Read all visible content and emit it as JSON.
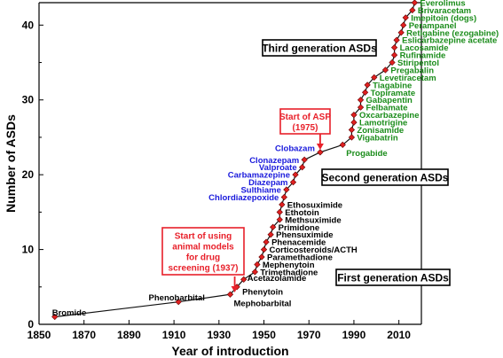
{
  "chart_data": {
    "type": "line",
    "title": "",
    "xlabel": "Year of introduction",
    "ylabel": "Number of ASDs",
    "xlim": [
      1850,
      2020
    ],
    "ylim": [
      0,
      43
    ],
    "xticks": [
      1850,
      1870,
      1890,
      1910,
      1930,
      1950,
      1970,
      1990,
      2010
    ],
    "yticks": [
      0,
      10,
      20,
      30,
      40
    ],
    "grid": false,
    "series": [
      {
        "name": "",
        "color": "#111111",
        "marker_color": "#e02020",
        "points": [
          {
            "x": 1857,
            "y": 1,
            "label": "Bromide",
            "gen": 1
          },
          {
            "x": 1912,
            "y": 3,
            "label": "Phenobarbital",
            "gen": 1
          },
          {
            "x": 1935,
            "y": 4,
            "label": "Mephobarbital",
            "gen": 1
          },
          {
            "x": 1938,
            "y": 5,
            "label": "Phenytoin",
            "gen": 1
          },
          {
            "x": 1941,
            "y": 6,
            "label": "Acetazolamide",
            "gen": 1
          },
          {
            "x": 1946,
            "y": 7,
            "label": "Trimethadione",
            "gen": 1
          },
          {
            "x": 1947,
            "y": 8,
            "label": "Mephenytoin",
            "gen": 1
          },
          {
            "x": 1949,
            "y": 9,
            "label": "Paramethadione",
            "gen": 1
          },
          {
            "x": 1950,
            "y": 10,
            "label": "Corticosteroids/ACTH",
            "gen": 1
          },
          {
            "x": 1951,
            "y": 11,
            "label": "Phenacemide",
            "gen": 1
          },
          {
            "x": 1953,
            "y": 12,
            "label": "Phensuximide",
            "gen": 1
          },
          {
            "x": 1954,
            "y": 13,
            "label": "Primidone",
            "gen": 1
          },
          {
            "x": 1957,
            "y": 14,
            "label": "Methsuximide",
            "gen": 1
          },
          {
            "x": 1957,
            "y": 15,
            "label": "Ethotoin",
            "gen": 1
          },
          {
            "x": 1958,
            "y": 16,
            "label": "Ethosuximide",
            "gen": 1
          },
          {
            "x": 1959,
            "y": 17,
            "label": "Chlordiazepoxide",
            "gen": 2
          },
          {
            "x": 1960,
            "y": 18,
            "label": "Sulthiame",
            "gen": 2
          },
          {
            "x": 1963,
            "y": 19,
            "label": "Diazepam",
            "gen": 2
          },
          {
            "x": 1964,
            "y": 20,
            "label": "Carbamazepine",
            "gen": 2
          },
          {
            "x": 1967,
            "y": 21,
            "label": "Valproate",
            "gen": 2
          },
          {
            "x": 1968,
            "y": 22,
            "label": "Clonazepam",
            "gen": 2
          },
          {
            "x": 1975,
            "y": 23,
            "label": "Clobazam",
            "gen": 2
          },
          {
            "x": 1985,
            "y": 24,
            "label": "Progabide",
            "gen": 3
          },
          {
            "x": 1989,
            "y": 25,
            "label": "Vigabatrin",
            "gen": 3
          },
          {
            "x": 1989,
            "y": 26,
            "label": "Zonisamide",
            "gen": 3
          },
          {
            "x": 1990,
            "y": 27,
            "label": "Lamotrigine",
            "gen": 3
          },
          {
            "x": 1990,
            "y": 28,
            "label": "Oxcarbazepine",
            "gen": 3
          },
          {
            "x": 1993,
            "y": 29,
            "label": "Felbamate",
            "gen": 3
          },
          {
            "x": 1993,
            "y": 30,
            "label": "Gabapentin",
            "gen": 3
          },
          {
            "x": 1995,
            "y": 31,
            "label": "Topiramate",
            "gen": 3
          },
          {
            "x": 1996,
            "y": 32,
            "label": "Tiagabine",
            "gen": 3
          },
          {
            "x": 1999,
            "y": 33,
            "label": "Levetiracetam",
            "gen": 3
          },
          {
            "x": 2004,
            "y": 34,
            "label": "Pregabalin",
            "gen": 3
          },
          {
            "x": 2007,
            "y": 35,
            "label": "Stiripentol",
            "gen": 3
          },
          {
            "x": 2008,
            "y": 36,
            "label": "Rufinamide",
            "gen": 3
          },
          {
            "x": 2008,
            "y": 37,
            "label": "Lacosamide",
            "gen": 3
          },
          {
            "x": 2009,
            "y": 38,
            "label": "Eslicarbazepine acetate",
            "gen": 3
          },
          {
            "x": 2011,
            "y": 39,
            "label": "Retigabine (ezogabine)",
            "gen": 3
          },
          {
            "x": 2012,
            "y": 40,
            "label": "Perampanel",
            "gen": 3
          },
          {
            "x": 2013,
            "y": 41,
            "label": "Imepitoin (dogs)",
            "gen": 3
          },
          {
            "x": 2016,
            "y": 42,
            "label": "Brivaracetam",
            "gen": 3
          },
          {
            "x": 2017,
            "y": 43,
            "label": "Everolimus",
            "gen": 3
          }
        ]
      }
    ],
    "generation_colors": {
      "1": "#000000",
      "2": "#1a1adc",
      "3": "#1a8c1a"
    },
    "annotations": [
      {
        "id": "third",
        "text": "Third generation ASDs",
        "border": "#000000"
      },
      {
        "id": "second",
        "text": "Second generation ASDs",
        "border": "#000000",
        "text_color": "#1a1adc"
      },
      {
        "id": "first",
        "text": "First generation ASDs",
        "border": "#000000"
      },
      {
        "id": "asp",
        "lines": [
          "Start of ASP",
          "(1975)"
        ],
        "border": "#e8202a",
        "arrow_to_x": 1975
      },
      {
        "id": "animal",
        "lines": [
          "Start of using",
          "animal models",
          "for drug",
          "screening (1937)"
        ],
        "border": "#e8202a",
        "arrow_to_x": 1937
      }
    ]
  }
}
